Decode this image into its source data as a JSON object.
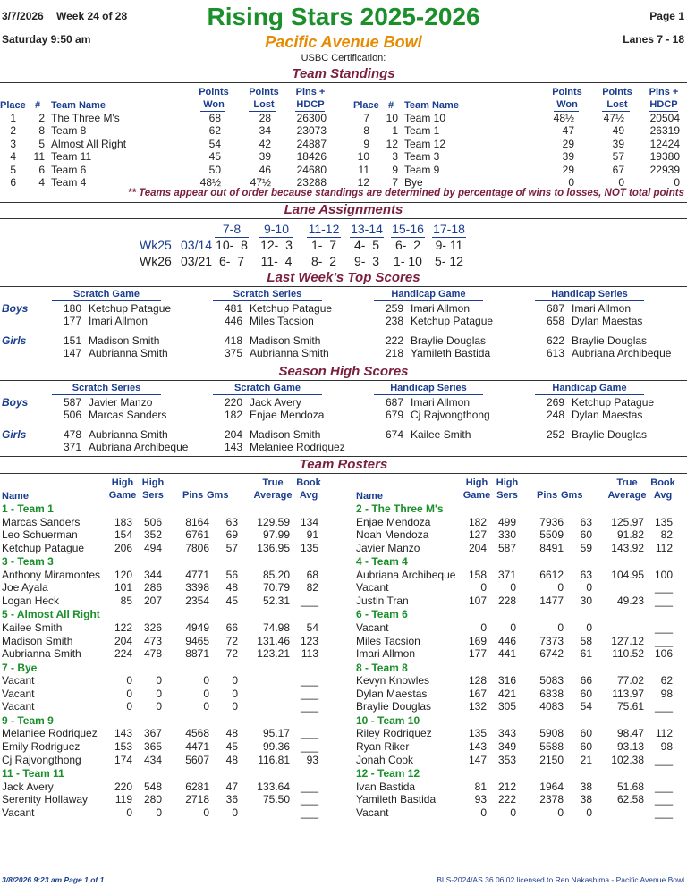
{
  "header": {
    "date": "3/7/2026",
    "week": "Week 24 of 28",
    "title": "Rising Stars 2025-2026",
    "page": "Page 1",
    "day_time": "Saturday   9:50 am",
    "center": "Pacific Avenue Bowl",
    "lanes": "Lanes 7 - 18",
    "cert": "USBC Certification:"
  },
  "standings": {
    "title": "Team Standings",
    "h_place": "Place",
    "h_num": "#",
    "h_name": "Team Name",
    "h_pw1": "Points",
    "h_pw2": "Won",
    "h_pl1": "Points",
    "h_pl2": "Lost",
    "h_ph1": "Pins +",
    "h_ph2": "HDCP",
    "left": [
      [
        "1",
        "2",
        "The Three M's",
        "68",
        "28",
        "26300"
      ],
      [
        "2",
        "8",
        "Team 8",
        "62",
        "34",
        "23073"
      ],
      [
        "3",
        "5",
        "Almost All Right",
        "54",
        "42",
        "24887"
      ],
      [
        "4",
        "11",
        "Team 11",
        "45",
        "39",
        "18426"
      ],
      [
        "5",
        "6",
        "Team 6",
        "50",
        "46",
        "24680"
      ],
      [
        "6",
        "4",
        "Team 4",
        "48½",
        "47½",
        "23288"
      ]
    ],
    "right": [
      [
        "7",
        "10",
        "Team 10",
        "48½",
        "47½",
        "20504"
      ],
      [
        "8",
        "1",
        "Team 1",
        "47",
        "49",
        "26319"
      ],
      [
        "9",
        "12",
        "Team 12",
        "29",
        "39",
        "12424"
      ],
      [
        "10",
        "3",
        "Team 3",
        "39",
        "57",
        "19380"
      ],
      [
        "11",
        "9",
        "Team 9",
        "29",
        "67",
        "22939"
      ],
      [
        "12",
        "7",
        "Bye",
        "0",
        "0",
        "0"
      ]
    ],
    "note": "** Teams appear out of order because standings are determined by percentage of wins to losses, NOT total points"
  },
  "lanes": {
    "title": "Lane Assignments",
    "pairs": [
      "7-8",
      "9-10",
      "11-12",
      "13-14",
      "15-16",
      "17-18"
    ],
    "weeks": [
      {
        "wk": "Wk25",
        "date": "03/14",
        "m": [
          "10-  8",
          "12-  3",
          "1-  7",
          "4-  5",
          "6-  2",
          "9- 11"
        ]
      },
      {
        "wk": "Wk26",
        "date": "03/21",
        "m": [
          "6-  7",
          "11-  4",
          "8-  2",
          "9-  3",
          "1- 10",
          "5- 12"
        ]
      }
    ]
  },
  "last_week": {
    "title": "Last Week's Top Scores",
    "cols": [
      "Scratch Game",
      "Scratch Series",
      "Handicap Game",
      "Handicap Series"
    ],
    "boys_label": "Boys",
    "girls_label": "Girls",
    "boys": [
      [
        [
          "180",
          "Ketchup Patague"
        ],
        [
          "177",
          "Imari Allmon"
        ]
      ],
      [
        [
          "481",
          "Ketchup Patague"
        ],
        [
          "446",
          "Miles Tacsion"
        ]
      ],
      [
        [
          "259",
          "Imari Allmon"
        ],
        [
          "238",
          "Ketchup Patague"
        ]
      ],
      [
        [
          "687",
          "Imari Allmon"
        ],
        [
          "658",
          "Dylan Maestas"
        ]
      ]
    ],
    "girls": [
      [
        [
          "151",
          "Madison Smith"
        ],
        [
          "147",
          "Aubrianna Smith"
        ]
      ],
      [
        [
          "418",
          "Madison Smith"
        ],
        [
          "375",
          "Aubrianna Smith"
        ]
      ],
      [
        [
          "222",
          "Braylie Douglas"
        ],
        [
          "218",
          "Yamileth Bastida"
        ]
      ],
      [
        [
          "622",
          "Braylie Douglas"
        ],
        [
          "613",
          "Aubriana Archibeque"
        ]
      ]
    ]
  },
  "season": {
    "title": "Season High Scores",
    "cols": [
      "Scratch Series",
      "Scratch Game",
      "Handicap Series",
      "Handicap Game"
    ],
    "boys": [
      [
        [
          "587",
          "Javier Manzo"
        ],
        [
          "506",
          "Marcas Sanders"
        ]
      ],
      [
        [
          "220",
          "Jack Avery"
        ],
        [
          "182",
          "Enjae Mendoza"
        ]
      ],
      [
        [
          "687",
          "Imari Allmon"
        ],
        [
          "679",
          "Cj Rajvongthong"
        ]
      ],
      [
        [
          "269",
          "Ketchup Patague"
        ],
        [
          "248",
          "Dylan Maestas"
        ]
      ]
    ],
    "girls": [
      [
        [
          "478",
          "Aubrianna Smith"
        ],
        [
          "371",
          "Aubriana Archibeque"
        ]
      ],
      [
        [
          "204",
          "Madison Smith"
        ],
        [
          "143",
          "Melaniee Rodriquez"
        ]
      ],
      [
        [
          "674",
          "Kailee Smith"
        ]
      ],
      [
        [
          "252",
          "Braylie Douglas"
        ]
      ]
    ]
  },
  "rosters": {
    "title": "Team Rosters",
    "h_name": "Name",
    "h_hg1": "High",
    "h_hg2": "Game",
    "h_hs1": "High",
    "h_hs2": "Sers",
    "h_pins": "Pins",
    "h_gms": "Gms",
    "h_ta1": "True",
    "h_ta2": "Average",
    "h_ba1": "Book",
    "h_ba2": "Avg",
    "left": [
      {
        "team": "1 - Team 1",
        "players": [
          [
            "Marcas Sanders",
            "183",
            "506",
            "8164",
            "63",
            "129.59",
            "134"
          ],
          [
            "Leo Schuerman",
            "154",
            "352",
            "6761",
            "69",
            "97.99",
            "91"
          ],
          [
            "Ketchup Patague",
            "206",
            "494",
            "7806",
            "57",
            "136.95",
            "135"
          ]
        ]
      },
      {
        "team": "3 - Team 3",
        "players": [
          [
            "Anthony Miramontes",
            "120",
            "344",
            "4771",
            "56",
            "85.20",
            "68"
          ],
          [
            "Joe Ayala",
            "101",
            "286",
            "3398",
            "48",
            "70.79",
            "82"
          ],
          [
            "Logan Heck",
            "85",
            "207",
            "2354",
            "45",
            "52.31",
            "___"
          ]
        ]
      },
      {
        "team": "5 - Almost All Right",
        "players": [
          [
            "Kailee Smith",
            "122",
            "326",
            "4949",
            "66",
            "74.98",
            "54"
          ],
          [
            "Madison Smith",
            "204",
            "473",
            "9465",
            "72",
            "131.46",
            "123"
          ],
          [
            "Aubrianna Smith",
            "224",
            "478",
            "8871",
            "72",
            "123.21",
            "113"
          ]
        ]
      },
      {
        "team": "7 - Bye",
        "players": [
          [
            "Vacant",
            "0",
            "0",
            "0",
            "0",
            "",
            "___"
          ],
          [
            "Vacant",
            "0",
            "0",
            "0",
            "0",
            "",
            "___"
          ],
          [
            "Vacant",
            "0",
            "0",
            "0",
            "0",
            "",
            "___"
          ]
        ]
      },
      {
        "team": "9 - Team 9",
        "players": [
          [
            "Melaniee Rodriquez",
            "143",
            "367",
            "4568",
            "48",
            "95.17",
            "___"
          ],
          [
            "Emily Rodriguez",
            "153",
            "365",
            "4471",
            "45",
            "99.36",
            "___"
          ],
          [
            "Cj Rajvongthong",
            "174",
            "434",
            "5607",
            "48",
            "116.81",
            "93"
          ]
        ]
      },
      {
        "team": "11 - Team 11",
        "players": [
          [
            "Jack Avery",
            "220",
            "548",
            "6281",
            "47",
            "133.64",
            "___"
          ],
          [
            "Serenity Hollaway",
            "119",
            "280",
            "2718",
            "36",
            "75.50",
            "___"
          ],
          [
            "Vacant",
            "0",
            "0",
            "0",
            "0",
            "",
            "___"
          ]
        ]
      }
    ],
    "right": [
      {
        "team": "2 - The Three M's",
        "players": [
          [
            "Enjae Mendoza",
            "182",
            "499",
            "7936",
            "63",
            "125.97",
            "135"
          ],
          [
            "Noah Mendoza",
            "127",
            "330",
            "5509",
            "60",
            "91.82",
            "82"
          ],
          [
            "Javier Manzo",
            "204",
            "587",
            "8491",
            "59",
            "143.92",
            "112"
          ]
        ]
      },
      {
        "team": "4 - Team 4",
        "players": [
          [
            "Aubriana Archibeque",
            "158",
            "371",
            "6612",
            "63",
            "104.95",
            "100"
          ],
          [
            "Vacant",
            "0",
            "0",
            "0",
            "0",
            "",
            "___"
          ],
          [
            "Justin Tran",
            "107",
            "228",
            "1477",
            "30",
            "49.23",
            "___"
          ]
        ]
      },
      {
        "team": "6 - Team 6",
        "players": [
          [
            "Vacant",
            "0",
            "0",
            "0",
            "0",
            "",
            "___"
          ],
          [
            "Miles Tacsion",
            "169",
            "446",
            "7373",
            "58",
            "127.12",
            "___"
          ],
          [
            "Imari Allmon",
            "177",
            "441",
            "6742",
            "61",
            "110.52",
            "106"
          ]
        ]
      },
      {
        "team": "8 - Team 8",
        "players": [
          [
            "Kevyn Knowles",
            "128",
            "316",
            "5083",
            "66",
            "77.02",
            "62"
          ],
          [
            "Dylan Maestas",
            "167",
            "421",
            "6838",
            "60",
            "113.97",
            "98"
          ],
          [
            "Braylie Douglas",
            "132",
            "305",
            "4083",
            "54",
            "75.61",
            "___"
          ]
        ]
      },
      {
        "team": "10 - Team 10",
        "players": [
          [
            "Riley Rodriquez",
            "135",
            "343",
            "5908",
            "60",
            "98.47",
            "112"
          ],
          [
            "Ryan Riker",
            "143",
            "349",
            "5588",
            "60",
            "93.13",
            "98"
          ],
          [
            "Jonah Cook",
            "147",
            "353",
            "2150",
            "21",
            "102.38",
            "___"
          ]
        ]
      },
      {
        "team": "12 - Team 12",
        "players": [
          [
            "Ivan Bastida",
            "81",
            "212",
            "1964",
            "38",
            "51.68",
            "___"
          ],
          [
            "Yamileth Bastida",
            "93",
            "222",
            "2378",
            "38",
            "62.58",
            "___"
          ],
          [
            "Vacant",
            "0",
            "0",
            "0",
            "0",
            "",
            "___"
          ]
        ]
      }
    ]
  },
  "footer": {
    "left": "3/8/2026  9:23 am  Page 1 of 1",
    "right": "BLS-2024/AS 36.06.02 licensed to Ren Nakashima - Pacific Avenue Bowl"
  }
}
